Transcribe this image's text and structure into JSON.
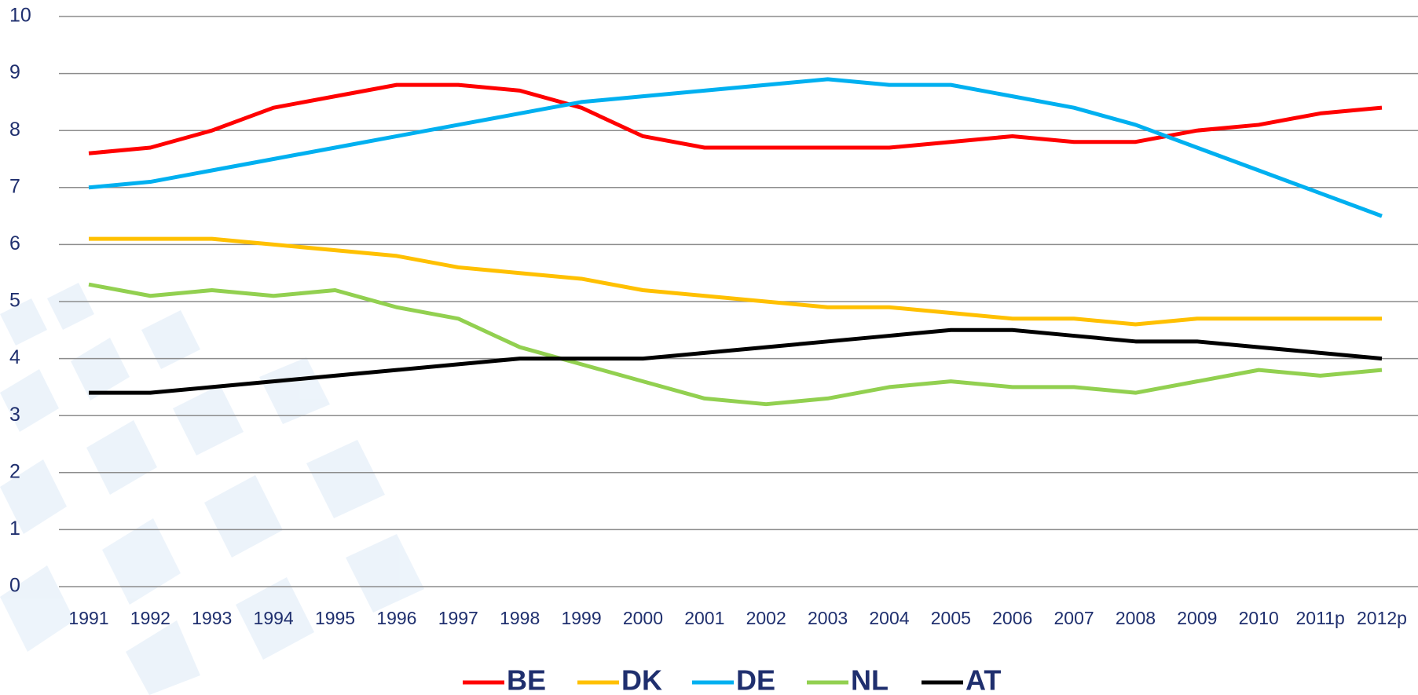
{
  "chart_data": {
    "type": "line",
    "categories": [
      "1991",
      "1992",
      "1993",
      "1994",
      "1995",
      "1996",
      "1997",
      "1998",
      "1999",
      "2000",
      "2001",
      "2002",
      "2003",
      "2004",
      "2005",
      "2006",
      "2007",
      "2008",
      "2009",
      "2010",
      "2011p",
      "2012p"
    ],
    "series": [
      {
        "name": "BE",
        "color": "#ff0000",
        "values": [
          7.6,
          7.7,
          8.0,
          8.4,
          8.6,
          8.8,
          8.8,
          8.7,
          8.4,
          7.9,
          7.7,
          7.7,
          7.7,
          7.7,
          7.8,
          7.9,
          7.8,
          7.8,
          8.0,
          8.1,
          8.3,
          8.4
        ]
      },
      {
        "name": "DK",
        "color": "#ffc000",
        "values": [
          6.1,
          6.1,
          6.1,
          6.0,
          5.9,
          5.8,
          5.6,
          5.5,
          5.4,
          5.2,
          5.1,
          5.0,
          4.9,
          4.9,
          4.8,
          4.7,
          4.7,
          4.6,
          4.7,
          4.7,
          4.7,
          4.7
        ]
      },
      {
        "name": "DE",
        "color": "#00b0f0",
        "values": [
          7.0,
          7.1,
          7.3,
          7.5,
          7.7,
          7.9,
          8.1,
          8.3,
          8.5,
          8.6,
          8.7,
          8.8,
          8.9,
          8.8,
          8.8,
          8.6,
          8.4,
          8.1,
          7.7,
          7.3,
          6.9,
          6.5
        ]
      },
      {
        "name": "NL",
        "color": "#92d050",
        "values": [
          5.3,
          5.1,
          5.2,
          5.1,
          5.2,
          4.9,
          4.7,
          4.2,
          3.9,
          3.6,
          3.3,
          3.2,
          3.3,
          3.5,
          3.6,
          3.5,
          3.5,
          3.4,
          3.6,
          3.8,
          3.7,
          3.8
        ]
      },
      {
        "name": "AT",
        "color": "#000000",
        "values": [
          3.4,
          3.4,
          3.5,
          3.6,
          3.7,
          3.8,
          3.9,
          4.0,
          4.0,
          4.0,
          4.1,
          4.2,
          4.3,
          4.4,
          4.5,
          4.5,
          4.4,
          4.3,
          4.3,
          4.2,
          4.1,
          4.0
        ]
      }
    ],
    "ylim": [
      0,
      10
    ],
    "yticks": [
      0,
      1,
      2,
      3,
      4,
      5,
      6,
      7,
      8,
      9,
      10
    ],
    "grid": true,
    "legend": "bottom"
  }
}
